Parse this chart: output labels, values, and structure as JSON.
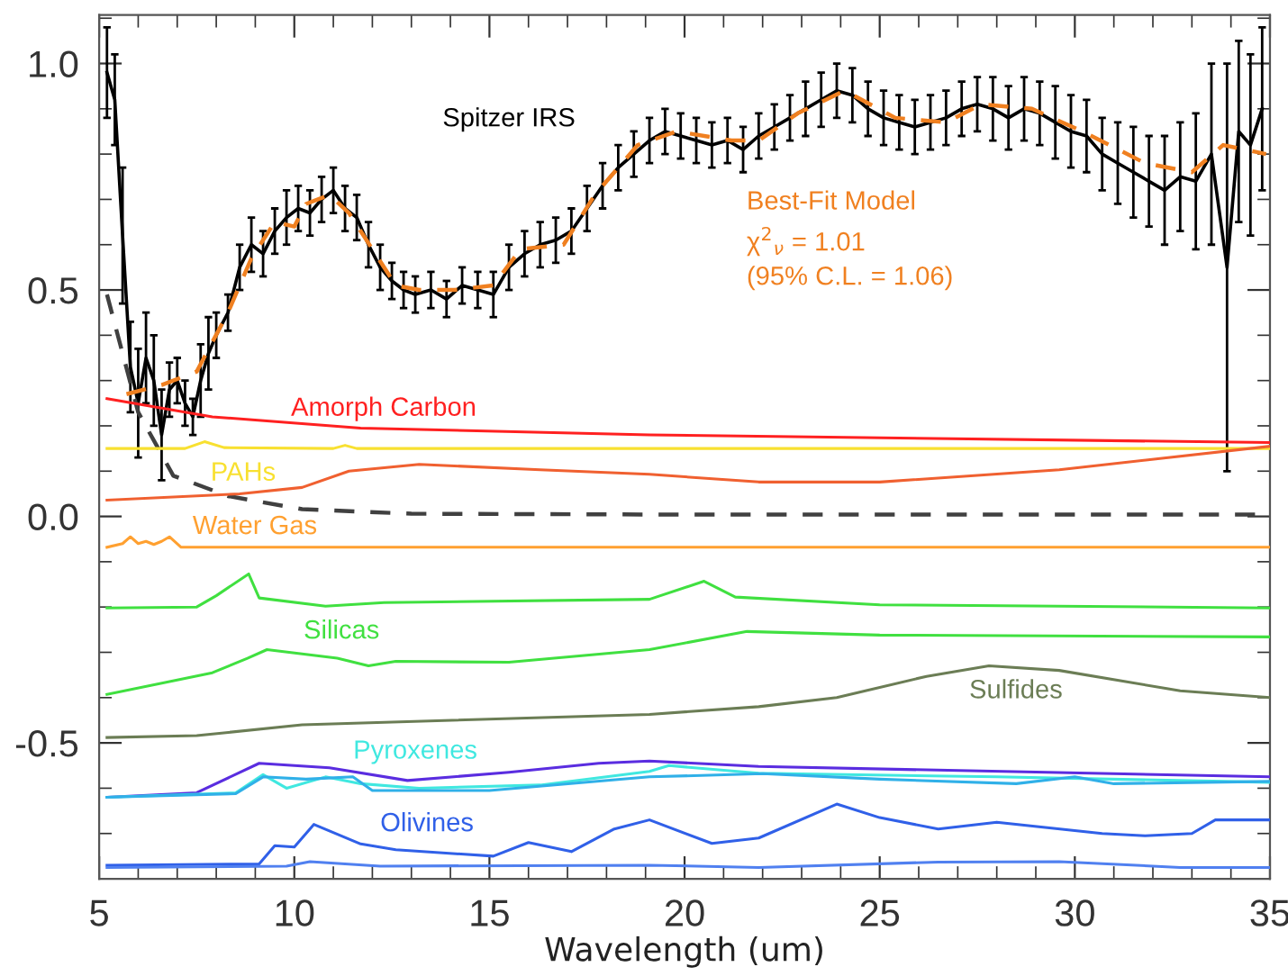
{
  "chart_data": {
    "type": "line",
    "xlabel": "Wavelength (um)",
    "xlim": [
      5,
      35
    ],
    "ylim": [
      -0.8,
      1.107
    ],
    "xticks": [
      5,
      10,
      15,
      20,
      25,
      30,
      35
    ],
    "yticks": [
      {
        "value": -0.5,
        "label": "-0.5"
      },
      {
        "value": 0,
        "label": "0.0"
      },
      {
        "value": 0.5,
        "label": "0.5"
      },
      {
        "value": 1,
        "label": "1.0"
      }
    ],
    "grid": false,
    "legend": false,
    "series": [
      {
        "name": "Spitzer IRS",
        "color": "#000000",
        "x": [
          5.2,
          5.4,
          5.6,
          5.8,
          6.0,
          6.2,
          6.4,
          6.6,
          6.8,
          7.0,
          7.2,
          7.4,
          7.6,
          7.8,
          8.0,
          8.3,
          8.6,
          8.9,
          9.2,
          9.5,
          9.8,
          10.1,
          10.4,
          10.7,
          11.0,
          11.3,
          11.6,
          11.9,
          12.2,
          12.5,
          12.8,
          13.1,
          13.5,
          13.9,
          14.3,
          14.7,
          15.1,
          15.5,
          15.9,
          16.3,
          16.7,
          17.1,
          17.5,
          17.9,
          18.3,
          18.7,
          19.1,
          19.5,
          19.9,
          20.3,
          20.7,
          21.1,
          21.5,
          21.9,
          22.3,
          22.7,
          23.1,
          23.5,
          23.9,
          24.3,
          24.7,
          25.1,
          25.5,
          25.9,
          26.3,
          26.7,
          27.1,
          27.5,
          27.9,
          28.3,
          28.7,
          29.1,
          29.5,
          29.9,
          30.3,
          30.7,
          31.1,
          31.5,
          31.9,
          32.3,
          32.7,
          33.1,
          33.5,
          33.9,
          34.2,
          34.5,
          34.8
        ],
        "values": [
          0.98,
          0.92,
          0.62,
          0.33,
          0.25,
          0.35,
          0.3,
          0.18,
          0.28,
          0.3,
          0.25,
          0.22,
          0.3,
          0.36,
          0.4,
          0.45,
          0.55,
          0.6,
          0.58,
          0.63,
          0.66,
          0.68,
          0.67,
          0.7,
          0.72,
          0.68,
          0.66,
          0.6,
          0.55,
          0.52,
          0.5,
          0.49,
          0.5,
          0.48,
          0.51,
          0.5,
          0.49,
          0.55,
          0.58,
          0.6,
          0.61,
          0.63,
          0.68,
          0.73,
          0.77,
          0.8,
          0.83,
          0.85,
          0.84,
          0.83,
          0.82,
          0.83,
          0.81,
          0.84,
          0.86,
          0.88,
          0.9,
          0.92,
          0.94,
          0.93,
          0.9,
          0.88,
          0.87,
          0.86,
          0.87,
          0.88,
          0.9,
          0.91,
          0.9,
          0.88,
          0.9,
          0.89,
          0.87,
          0.85,
          0.84,
          0.8,
          0.78,
          0.76,
          0.74,
          0.72,
          0.75,
          0.74,
          0.8,
          0.55,
          0.85,
          0.82,
          0.9
        ],
        "errors": [
          0.1,
          0.1,
          0.15,
          0.1,
          0.12,
          0.1,
          0.1,
          0.1,
          0.06,
          0.05,
          0.05,
          0.04,
          0.08,
          0.08,
          0.05,
          0.04,
          0.05,
          0.06,
          0.05,
          0.05,
          0.06,
          0.05,
          0.05,
          0.05,
          0.05,
          0.05,
          0.05,
          0.05,
          0.05,
          0.04,
          0.04,
          0.04,
          0.04,
          0.04,
          0.04,
          0.04,
          0.05,
          0.05,
          0.05,
          0.05,
          0.05,
          0.05,
          0.05,
          0.05,
          0.05,
          0.05,
          0.05,
          0.05,
          0.05,
          0.05,
          0.05,
          0.05,
          0.05,
          0.05,
          0.05,
          0.05,
          0.06,
          0.06,
          0.06,
          0.06,
          0.06,
          0.06,
          0.06,
          0.06,
          0.06,
          0.06,
          0.06,
          0.06,
          0.07,
          0.07,
          0.07,
          0.07,
          0.08,
          0.08,
          0.08,
          0.08,
          0.09,
          0.1,
          0.1,
          0.12,
          0.12,
          0.15,
          0.2,
          0.45,
          0.2,
          0.2,
          0.18
        ]
      },
      {
        "name": "Best-Fit Model\nχ$^{2}$$_{ν}$ = 1.01\n(95% C.L. = 1.06)",
        "color": "#f08020",
        "line_style": "dashed",
        "x": [
          5.7,
          6.6,
          7.5,
          8.3,
          8.9,
          9.5,
          10.0,
          10.3,
          10.9,
          11.4,
          12.0,
          12.6,
          13.2,
          14.1,
          15.1,
          15.8,
          16.9,
          17.7,
          18.8,
          19.8,
          21.2,
          21.9,
          22.9,
          24.1,
          25.4,
          26.7,
          27.6,
          28.9,
          30.2,
          31.8,
          33.0,
          33.8,
          34.9
        ],
        "values": [
          0.27,
          0.29,
          0.32,
          0.45,
          0.57,
          0.65,
          0.64,
          0.69,
          0.71,
          0.67,
          0.59,
          0.51,
          0.5,
          0.5,
          0.51,
          0.59,
          0.6,
          0.71,
          0.82,
          0.85,
          0.83,
          0.83,
          0.89,
          0.94,
          0.88,
          0.87,
          0.91,
          0.9,
          0.85,
          0.78,
          0.76,
          0.82,
          0.8
        ]
      },
      {
        "color": "#404040",
        "line_style": "dashed",
        "x": [
          5.2,
          6.0,
          6.9,
          8.3,
          10.2,
          13,
          20,
          35
        ],
        "values": [
          0.49,
          0.23,
          0.09,
          0.045,
          0.016,
          0.006,
          0.004,
          0.004
        ]
      },
      {
        "name": "Amorph Carbon",
        "color": "#ff2020",
        "x": [
          5.2,
          7.9,
          11.7,
          19.1,
          35
        ],
        "values": [
          0.26,
          0.22,
          0.195,
          0.18,
          0.163
        ]
      },
      {
        "name": "PAHs",
        "color": "#f8e030",
        "x": [
          5.2,
          7.2,
          7.7,
          8.2,
          11.0,
          11.3,
          11.6,
          35
        ],
        "values": [
          0.15,
          0.15,
          0.165,
          0.152,
          0.15,
          0.157,
          0.15,
          0.15
        ]
      },
      {
        "color": "#f06030",
        "x": [
          5.2,
          8.6,
          10.2,
          11.4,
          13.2,
          16.3,
          19.1,
          21.9,
          25.0,
          29.6,
          35
        ],
        "values": [
          0.036,
          0.05,
          0.064,
          0.1,
          0.115,
          0.103,
          0.093,
          0.076,
          0.076,
          0.103,
          0.155
        ]
      },
      {
        "name": "Water Gas",
        "color": "#ffa030",
        "x": [
          5.2,
          5.6,
          5.8,
          6.0,
          6.2,
          6.4,
          6.6,
          6.8,
          7.1,
          35
        ],
        "values": [
          -0.068,
          -0.06,
          -0.045,
          -0.06,
          -0.055,
          -0.062,
          -0.055,
          -0.045,
          -0.068,
          -0.068
        ]
      },
      {
        "name": "Silicas",
        "color": "#40e040",
        "x": [
          5.2,
          7.5,
          8.0,
          8.83,
          9.1,
          10.8,
          12.3,
          19.1,
          20.5,
          21.3,
          25,
          35
        ],
        "values": [
          -0.202,
          -0.2,
          -0.175,
          -0.127,
          -0.18,
          -0.198,
          -0.19,
          -0.183,
          -0.143,
          -0.178,
          -0.195,
          -0.202
        ]
      },
      {
        "color": "#40e040",
        "x": [
          5.2,
          7.9,
          8.8,
          9.3,
          11.1,
          11.9,
          12.6,
          15.5,
          19.1,
          21.6,
          25,
          35
        ],
        "values": [
          -0.393,
          -0.345,
          -0.313,
          -0.294,
          -0.313,
          -0.33,
          -0.32,
          -0.322,
          -0.294,
          -0.254,
          -0.262,
          -0.266
        ]
      },
      {
        "name": "Sulfides",
        "color": "#6b7d55",
        "x": [
          5.2,
          7.5,
          10.2,
          19.1,
          21.9,
          23.9,
          26.2,
          27.8,
          29.6,
          32.7,
          35
        ],
        "values": [
          -0.488,
          -0.484,
          -0.46,
          -0.437,
          -0.42,
          -0.4,
          -0.353,
          -0.33,
          -0.34,
          -0.385,
          -0.4
        ]
      },
      {
        "color": "#5a2de0",
        "x": [
          5.2,
          7.5,
          9.1,
          10.9,
          12.9,
          15.5,
          17.8,
          19.1,
          21.9,
          35
        ],
        "values": [
          -0.62,
          -0.61,
          -0.545,
          -0.555,
          -0.583,
          -0.565,
          -0.545,
          -0.54,
          -0.552,
          -0.575
        ]
      },
      {
        "name": "Pyroxenes",
        "color": "#40e8e0",
        "x": [
          5.2,
          8.5,
          9.2,
          9.8,
          10.8,
          11.7,
          13.2,
          16.3,
          19.1,
          19.6,
          21.9,
          28,
          35
        ],
        "values": [
          -0.62,
          -0.61,
          -0.57,
          -0.6,
          -0.575,
          -0.59,
          -0.6,
          -0.593,
          -0.563,
          -0.55,
          -0.567,
          -0.575,
          -0.587
        ]
      },
      {
        "color": "#30b0e8",
        "x": [
          5.2,
          8.5,
          9.2,
          10.3,
          11.5,
          12.0,
          15,
          19.1,
          22,
          25,
          28.5,
          30,
          31,
          35
        ],
        "values": [
          -0.62,
          -0.612,
          -0.575,
          -0.58,
          -0.575,
          -0.605,
          -0.605,
          -0.575,
          -0.568,
          -0.58,
          -0.59,
          -0.575,
          -0.59,
          -0.585
        ]
      },
      {
        "name": "Olivines",
        "color": "#3060e8",
        "x": [
          5.2,
          9.1,
          9.5,
          10.0,
          10.2,
          10.5,
          11.7,
          12.6,
          15.1,
          16.0,
          17.1,
          18.2,
          19.1,
          20.7,
          21.9,
          23.9,
          25,
          26.5,
          28,
          30.7,
          31.8,
          33,
          33.6,
          35
        ],
        "values": [
          -0.77,
          -0.767,
          -0.727,
          -0.73,
          -0.71,
          -0.68,
          -0.723,
          -0.736,
          -0.75,
          -0.72,
          -0.74,
          -0.69,
          -0.67,
          -0.722,
          -0.71,
          -0.635,
          -0.665,
          -0.69,
          -0.675,
          -0.7,
          -0.705,
          -0.7,
          -0.67,
          -0.67
        ]
      },
      {
        "color": "#5080f0",
        "x": [
          5.2,
          9.8,
          10.4,
          12.2,
          19.1,
          21.9,
          26.5,
          29.6,
          32.7,
          35
        ],
        "values": [
          -0.775,
          -0.772,
          -0.762,
          -0.772,
          -0.77,
          -0.775,
          -0.763,
          -0.762,
          -0.775,
          -0.775
        ]
      }
    ]
  }
}
